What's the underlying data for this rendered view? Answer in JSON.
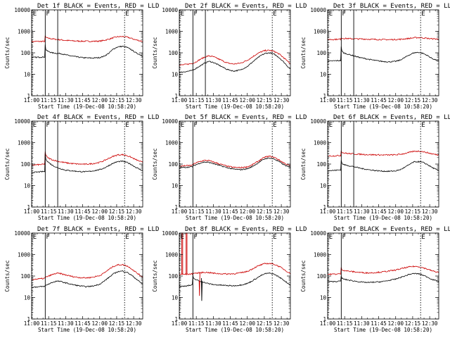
{
  "chart_data": {
    "type": "line",
    "layout": "3x3 grid of log-scale time-series panels",
    "series_legend": {
      "black": "Events",
      "red": "LLD"
    },
    "colors": {
      "events": "#000000",
      "lld": "#cc0000",
      "axes": "#000000",
      "markers": "#000000"
    },
    "x_ticks": [
      "11:00",
      "11:15",
      "11:30",
      "11:45",
      "12:00",
      "12:15",
      "12:30"
    ],
    "x_tick_minutes": [
      0,
      15,
      30,
      45,
      60,
      75,
      90
    ],
    "xlim_minutes_after_11_00": [
      0,
      98
    ],
    "y_ticks": [
      "1",
      "10",
      "100",
      "1000",
      "10000"
    ],
    "ylim": [
      1,
      10000
    ],
    "yscale": "log",
    "xlabel": "Start Time (19-Dec-08 10:58:20)",
    "ylabel": "Counts/sec",
    "event_markers": [
      {
        "label": "E",
        "t": 0.5,
        "style": "dotted"
      },
      {
        "label": "F",
        "t": 12,
        "style": "solid"
      },
      {
        "label": "",
        "t": 23,
        "style": "solid"
      },
      {
        "label": "E",
        "t": 82,
        "style": "dotted"
      }
    ],
    "time_points": [
      0,
      4,
      8,
      11.5,
      12,
      12.5,
      14,
      18,
      22,
      26,
      30,
      36,
      42,
      48,
      54,
      60,
      64,
      68,
      72,
      76,
      80,
      84,
      88,
      92,
      96,
      98
    ],
    "panels": [
      {
        "title": "Det 1f BLACK = Events, RED = LLD",
        "events": [
          60,
          62,
          63,
          64,
          240,
          140,
          120,
          100,
          95,
          92,
          80,
          70,
          62,
          58,
          57,
          60,
          70,
          95,
          150,
          190,
          200,
          180,
          140,
          100,
          80,
          70
        ],
        "lld": [
          330,
          340,
          340,
          340,
          600,
          520,
          480,
          450,
          420,
          400,
          380,
          360,
          350,
          345,
          345,
          350,
          380,
          430,
          500,
          560,
          570,
          540,
          470,
          400,
          360,
          340
        ]
      },
      {
        "title": "Det 2f BLACK = Events, RED = LLD",
        "events": [
          12,
          13,
          14,
          15,
          16,
          16,
          18,
          24,
          32,
          40,
          36,
          25,
          17,
          14,
          16,
          23,
          35,
          52,
          75,
          95,
          100,
          85,
          60,
          38,
          22,
          18
        ],
        "lld": [
          26,
          28,
          30,
          32,
          34,
          34,
          36,
          48,
          62,
          72,
          66,
          48,
          34,
          30,
          33,
          45,
          62,
          86,
          110,
          128,
          130,
          115,
          88,
          60,
          38,
          32
        ]
      },
      {
        "title": "Det 3f BLACK = Events, RED = LLD",
        "events": [
          40,
          42,
          43,
          44,
          200,
          120,
          100,
          85,
          75,
          65,
          58,
          50,
          44,
          40,
          38,
          40,
          46,
          60,
          80,
          100,
          105,
          95,
          75,
          55,
          45,
          42
        ],
        "lld": [
          420,
          420,
          425,
          430,
          520,
          480,
          470,
          460,
          450,
          445,
          440,
          430,
          420,
          415,
          410,
          415,
          425,
          445,
          470,
          500,
          510,
          500,
          470,
          450,
          440,
          430
        ]
      },
      {
        "title": "Det 4f BLACK = Events, RED = LLD",
        "events": [
          40,
          42,
          44,
          45,
          300,
          180,
          130,
          90,
          70,
          60,
          52,
          48,
          45,
          44,
          48,
          55,
          65,
          85,
          110,
          130,
          135,
          120,
          95,
          70,
          55,
          50
        ],
        "lld": [
          90,
          92,
          95,
          98,
          380,
          260,
          200,
          160,
          140,
          125,
          115,
          105,
          100,
          98,
          105,
          120,
          145,
          185,
          230,
          270,
          275,
          250,
          205,
          160,
          130,
          120
        ]
      },
      {
        "title": "Det 5f BLACK = Events, RED = LLD",
        "events": [
          70,
          70,
          72,
          75,
          80,
          82,
          90,
          110,
          125,
          120,
          105,
          85,
          68,
          58,
          55,
          60,
          75,
          100,
          140,
          180,
          190,
          170,
          130,
          95,
          75,
          70
        ],
        "lld": [
          80,
          82,
          85,
          88,
          95,
          98,
          110,
          130,
          148,
          145,
          125,
          100,
          80,
          70,
          68,
          74,
          90,
          120,
          165,
          215,
          230,
          205,
          155,
          115,
          90,
          85
        ],
        "hide_markers": [
          2
        ]
      },
      {
        "title": "Det 6f BLACK = Events, RED = LLD",
        "events": [
          50,
          50,
          52,
          54,
          150,
          110,
          95,
          85,
          78,
          70,
          62,
          55,
          50,
          47,
          46,
          48,
          55,
          70,
          95,
          125,
          130,
          120,
          95,
          70,
          55,
          50
        ],
        "lld": [
          240,
          240,
          245,
          250,
          420,
          360,
          330,
          310,
          300,
          290,
          285,
          275,
          270,
          265,
          265,
          270,
          285,
          310,
          350,
          390,
          400,
          380,
          340,
          300,
          275,
          265
        ]
      },
      {
        "title": "Det 7f BLACK = Events, RED = LLD",
        "events": [
          30,
          31,
          32,
          33,
          35,
          36,
          40,
          50,
          58,
          55,
          48,
          40,
          35,
          32,
          34,
          42,
          58,
          85,
          125,
          160,
          170,
          150,
          110,
          75,
          50,
          42
        ],
        "lld": [
          70,
          72,
          75,
          78,
          85,
          88,
          95,
          115,
          135,
          128,
          112,
          95,
          85,
          82,
          88,
          105,
          140,
          200,
          280,
          330,
          340,
          300,
          220,
          150,
          105,
          90
        ],
        "hide_markers": [
          2
        ]
      },
      {
        "title": "Det 8f BLACK = Events, RED = LLD",
        "events": [
          32,
          34,
          36,
          38,
          100,
          80,
          70,
          58,
          50,
          44,
          40,
          38,
          36,
          35,
          38,
          45,
          58,
          78,
          105,
          130,
          135,
          120,
          90,
          65,
          45,
          38
        ],
        "lld": [
          120,
          120,
          122,
          125,
          140,
          138,
          135,
          140,
          150,
          145,
          135,
          128,
          125,
          128,
          140,
          165,
          210,
          270,
          330,
          380,
          385,
          350,
          280,
          210,
          150,
          130
        ],
        "spikes": {
          "lld_top": 10000,
          "events_low": 7,
          "lld_low": 12
        },
        "hide_markers": [
          2
        ]
      },
      {
        "title": "Det 9f BLACK = Events, RED = LLD",
        "events": [
          55,
          55,
          56,
          58,
          100,
          80,
          72,
          65,
          60,
          56,
          52,
          50,
          52,
          55,
          62,
          72,
          85,
          100,
          120,
          130,
          128,
          110,
          90,
          70,
          60,
          56
        ],
        "lld": [
          120,
          122,
          124,
          126,
          240,
          200,
          185,
          170,
          160,
          152,
          145,
          140,
          145,
          155,
          170,
          190,
          215,
          240,
          265,
          280,
          275,
          245,
          210,
          175,
          155,
          150
        ],
        "hide_markers": [
          2
        ]
      }
    ]
  }
}
